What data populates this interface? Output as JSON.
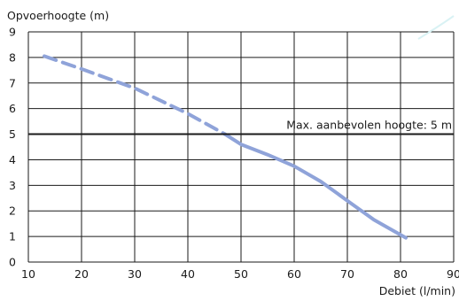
{
  "chart_data": {
    "type": "line",
    "ylabel": "Opvoerhoogte (m)",
    "xlabel": "Debiet (l/min)",
    "xlim": [
      10,
      90
    ],
    "ylim": [
      0,
      9
    ],
    "x_ticks": [
      "10",
      "20",
      "30",
      "40",
      "50",
      "60",
      "70",
      "80",
      "90"
    ],
    "y_ticks": [
      "0",
      "1",
      "2",
      "3",
      "4",
      "5",
      "6",
      "7",
      "8",
      "9"
    ],
    "grid": true,
    "series": [
      {
        "style": "dashed",
        "color": "#8fa3d9",
        "x": [
          13,
          20,
          30,
          40,
          47
        ],
        "y": [
          8.05,
          7.55,
          6.8,
          5.8,
          5.0
        ]
      },
      {
        "style": "solid",
        "color": "#8fa3d9",
        "x": [
          47,
          50,
          55,
          60,
          65,
          70,
          75,
          81
        ],
        "y": [
          5.0,
          4.6,
          4.2,
          3.75,
          3.15,
          2.4,
          1.65,
          0.95
        ]
      }
    ],
    "reference_line": {
      "y": 5,
      "label": "Max. aanbevolen hoogte: 5 m",
      "color": "#1a1a1a"
    }
  }
}
